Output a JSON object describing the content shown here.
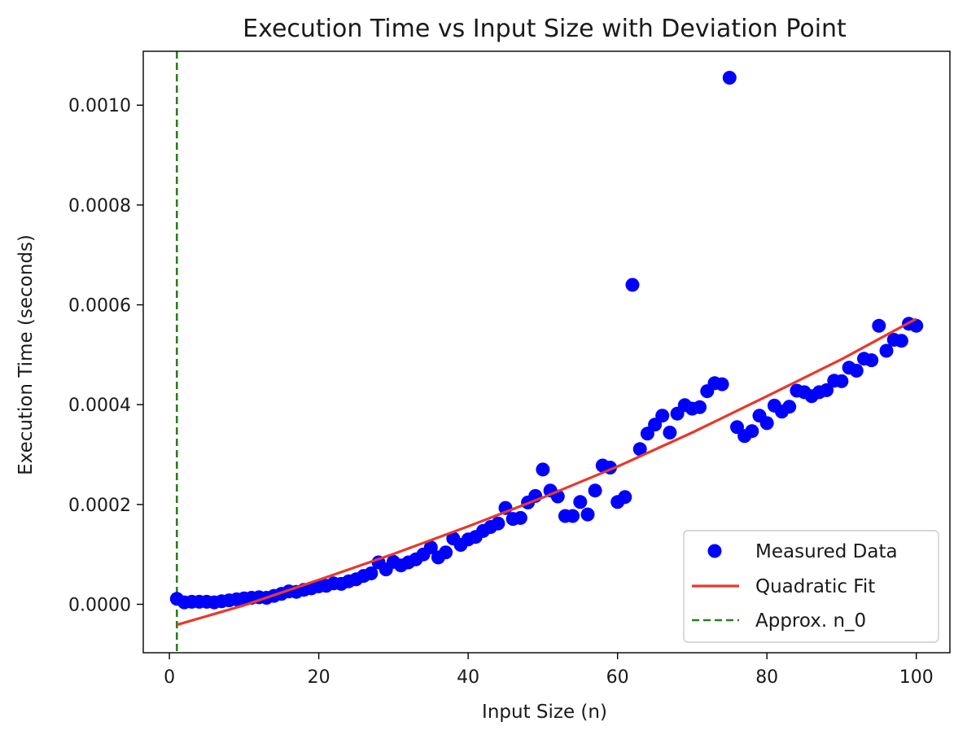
{
  "colors": {
    "points": "#0000ff",
    "fit": "#e8392b",
    "n0_line": "#2e7d1f",
    "axes": "#000000",
    "legend_border": "#cccccc"
  },
  "chart_data": {
    "type": "scatter",
    "title": "Execution Time vs Input Size with Deviation Point",
    "xlabel": "Input Size (n)",
    "ylabel": "Execution Time (seconds)",
    "xlim": [
      -3.5,
      104.5
    ],
    "ylim": [
      -9.7e-05,
      0.001108
    ],
    "x_ticks": [
      0,
      20,
      40,
      60,
      80,
      100
    ],
    "x_tick_labels": [
      "0",
      "20",
      "40",
      "60",
      "80",
      "100"
    ],
    "y_ticks": [
      0,
      0.0002,
      0.0004,
      0.0006,
      0.0008,
      0.001
    ],
    "y_tick_labels": [
      "0.0000",
      "0.0002",
      "0.0004",
      "0.0006",
      "0.0008",
      "0.0010"
    ],
    "grid": false,
    "legend_position": "lower-right",
    "series": [
      {
        "name": "Measured Data",
        "kind": "scatter",
        "x": [
          1,
          2,
          3,
          4,
          5,
          6,
          7,
          8,
          9,
          10,
          11,
          12,
          13,
          14,
          15,
          16,
          17,
          18,
          19,
          20,
          21,
          22,
          23,
          24,
          25,
          26,
          27,
          28,
          29,
          30,
          31,
          32,
          33,
          34,
          35,
          36,
          37,
          38,
          39,
          40,
          41,
          42,
          43,
          44,
          45,
          46,
          47,
          48,
          49,
          50,
          51,
          52,
          53,
          54,
          55,
          56,
          57,
          58,
          59,
          60,
          61,
          62,
          63,
          64,
          65,
          66,
          67,
          68,
          69,
          70,
          71,
          72,
          73,
          74,
          75,
          76,
          77,
          78,
          79,
          80,
          81,
          82,
          83,
          84,
          85,
          86,
          87,
          88,
          89,
          90,
          91,
          92,
          93,
          94,
          95,
          96,
          97,
          98,
          99,
          100
        ],
        "y": [
          1.1e-05,
          4e-06,
          5e-06,
          5e-06,
          5e-06,
          4e-06,
          6e-06,
          8e-06,
          1e-05,
          1.2e-05,
          1.3e-05,
          1.4e-05,
          1.3e-05,
          1.7e-05,
          2.1e-05,
          2.6e-05,
          2.5e-05,
          2.9e-05,
          3.2e-05,
          3.6e-05,
          3.7e-05,
          4.2e-05,
          4.1e-05,
          4.6e-05,
          5e-05,
          5.7e-05,
          6.2e-05,
          8.4e-05,
          7e-05,
          8.5e-05,
          7.8e-05,
          8.4e-05,
          9e-05,
          0.0001,
          0.000114,
          9.4e-05,
          0.000104,
          0.000132,
          0.000119,
          0.00013,
          0.000135,
          0.000147,
          0.000155,
          0.000162,
          0.000193,
          0.000171,
          0.000173,
          0.000204,
          0.000217,
          0.00027,
          0.000228,
          0.000216,
          0.000177,
          0.000177,
          0.000205,
          0.00018,
          0.000228,
          0.000278,
          0.000274,
          0.000205,
          0.000215,
          0.00064,
          0.000311,
          0.000342,
          0.00036,
          0.000378,
          0.000344,
          0.000382,
          0.000399,
          0.000392,
          0.000395,
          0.000427,
          0.000443,
          0.000441,
          0.001055,
          0.000355,
          0.000337,
          0.000347,
          0.000378,
          0.000363,
          0.000398,
          0.000386,
          0.000396,
          0.000428,
          0.000425,
          0.000417,
          0.000425,
          0.000429,
          0.000448,
          0.000447,
          0.000474,
          0.000468,
          0.000492,
          0.000489,
          0.000558,
          0.000508,
          0.00053,
          0.000528,
          0.000562,
          0.000558
        ]
      },
      {
        "name": "Quadratic Fit",
        "kind": "line",
        "x": [
          1,
          10,
          20,
          30,
          40,
          50,
          60,
          70,
          80,
          90,
          100
        ],
        "y": [
          -4.1e-05,
          -2e-06,
          4.9e-05,
          0.000101,
          0.000156,
          0.000214,
          0.000276,
          0.000344,
          0.000417,
          0.000491,
          0.000572
        ]
      },
      {
        "name": "Approx. n_0",
        "kind": "vline",
        "x": 1
      }
    ]
  }
}
